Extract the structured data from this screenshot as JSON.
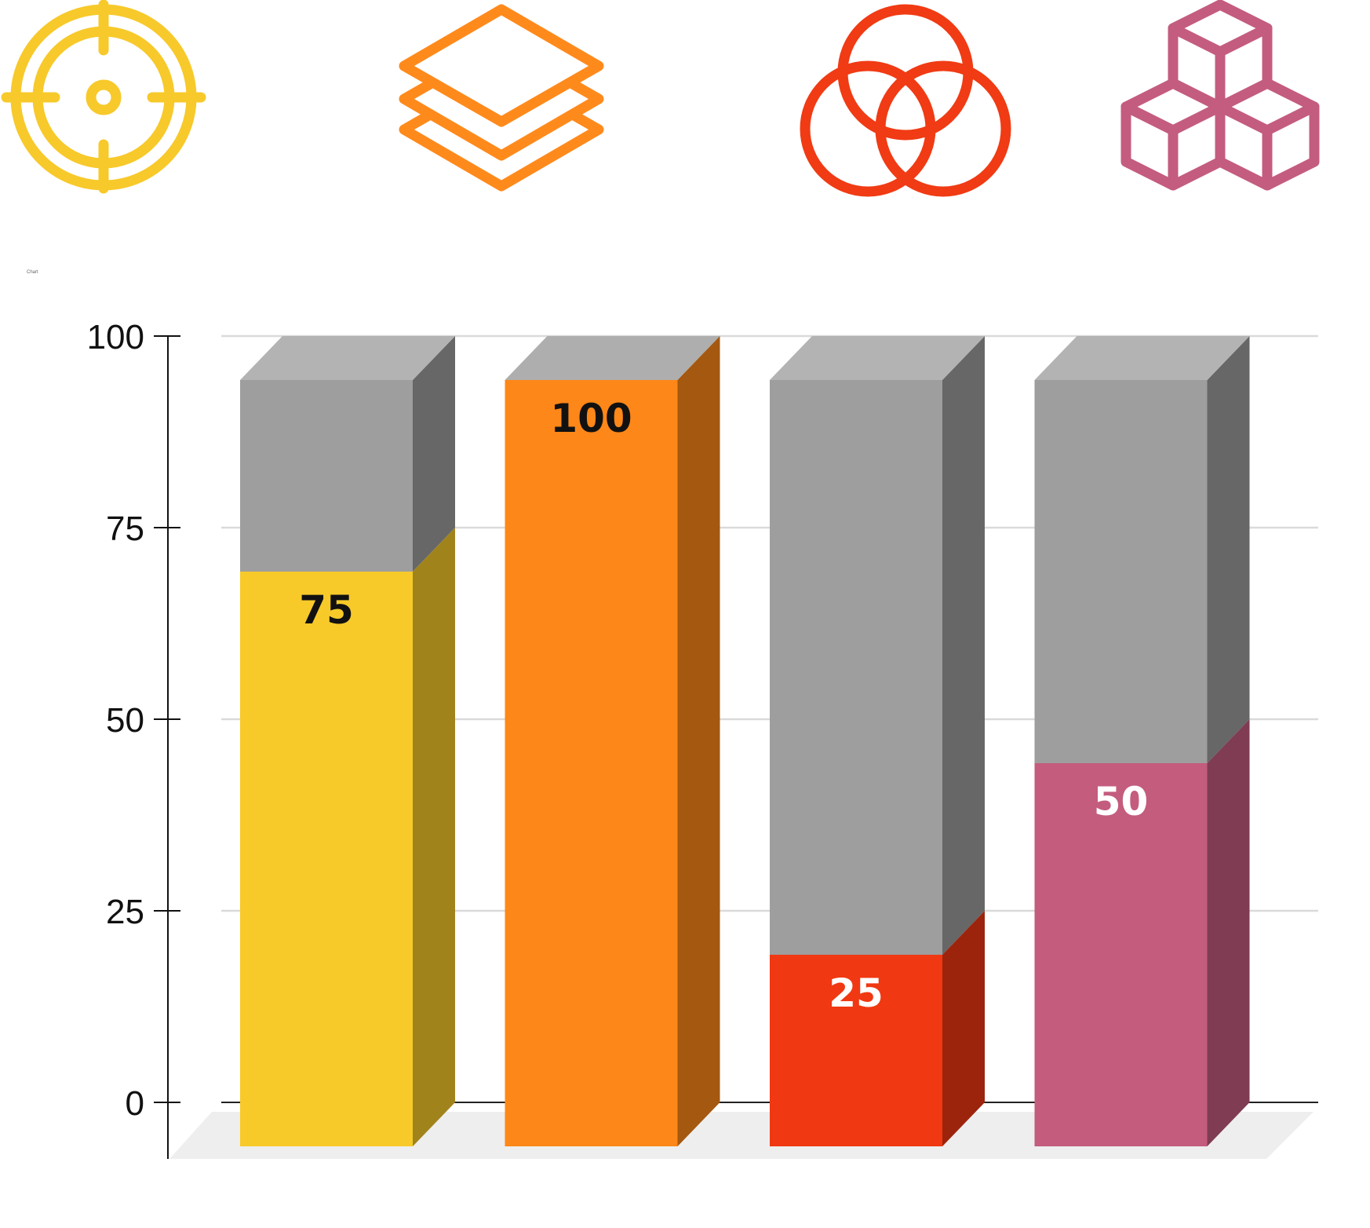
{
  "icons": [
    {
      "name": "crosshair-target-icon",
      "color": "#F7C92A"
    },
    {
      "name": "stacked-layers-icon",
      "color": "#FF8A1C"
    },
    {
      "name": "venn-three-circles-icon",
      "color": "#F03B14"
    },
    {
      "name": "stacked-cubes-icon",
      "color": "#C45C80"
    }
  ],
  "chart_data": {
    "type": "bar",
    "title": "Chart",
    "categories": [
      "",
      "",
      "",
      ""
    ],
    "values": [
      75,
      100,
      25,
      50
    ],
    "value_labels": [
      "75",
      "100",
      "25",
      "50"
    ],
    "ylim": [
      0,
      100
    ],
    "yticks": [
      0,
      25,
      50,
      75,
      100
    ],
    "ytick_labels": [
      "0",
      "25",
      "50",
      "75",
      "100"
    ],
    "grid": true,
    "style": "3d-stacked-with-gray-remainder",
    "colors": [
      "#F7CA2A",
      "#FD8718",
      "#F03812",
      "#C45C7E"
    ],
    "remainder_color": "#9E9E9E",
    "label_colors": [
      "#111111",
      "#111111",
      "#ffffff",
      "#ffffff"
    ]
  }
}
